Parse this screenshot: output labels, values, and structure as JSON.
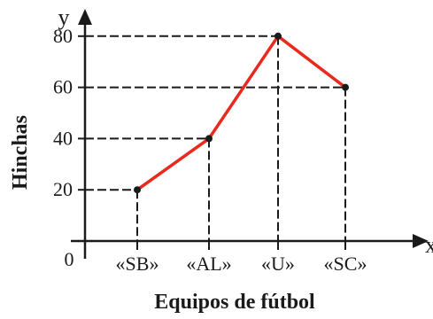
{
  "chart_data": {
    "type": "line",
    "categories": [
      "«SB»",
      "«AL»",
      "«U»",
      "«SC»"
    ],
    "values": [
      20,
      40,
      80,
      60
    ],
    "xlabel": "Equipos de fútbol",
    "ylabel": "Hinchas",
    "x_axis_letter": "x",
    "y_axis_letter": "y",
    "origin_label": "0",
    "yticks": [
      20,
      40,
      60,
      80
    ],
    "ylim": [
      0,
      90
    ],
    "grid": false,
    "guide_lines": "dashed",
    "line_color": "#e8291c",
    "point_color": "#1a1a1a",
    "axis_color": "#1a1a1a"
  }
}
